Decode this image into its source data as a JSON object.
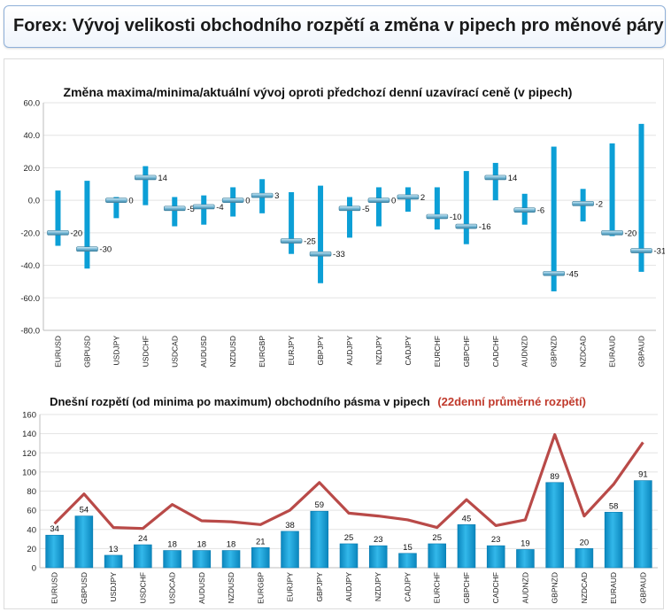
{
  "header": {
    "title": "Forex: Vývoj velikosti obchodního rozpětí a změna v pipech pro měnové páry"
  },
  "colors": {
    "bar": "#0c9fd6",
    "average_line": "#b94a48",
    "grid": "#e3e3e3"
  },
  "chart_data": [
    {
      "type": "bar",
      "title": "Změna maxima/minima/aktuální vývoj oproti předchozí denní uzavírací ceně (v pipech)",
      "ylim": [
        -80,
        60
      ],
      "yticks": [
        "60.0",
        "40.0",
        "20.0",
        "0.0",
        "-20.0",
        "-40.0",
        "-60.0",
        "-80.0"
      ],
      "categories": [
        "EURUSD",
        "GBPUSD",
        "USDJPY",
        "USDCHF",
        "USDCAD",
        "AUDUSD",
        "NZDUSD",
        "EURGBP",
        "EURJPY",
        "GBPJPY",
        "AUDJPY",
        "NZDJPY",
        "CADJPY",
        "EURCHF",
        "GBPCHF",
        "CADCHF",
        "AUDNZD",
        "GBPNZD",
        "NZDCAD",
        "EURAUD",
        "GBPAUD"
      ],
      "series": [
        {
          "values_high": [
            6,
            12,
            2,
            21,
            2,
            3,
            8,
            13,
            5,
            9,
            2,
            8,
            8,
            8,
            18,
            23,
            4,
            33,
            7,
            35,
            47
          ]
        },
        {
          "values_low": [
            -28,
            -42,
            -11,
            -3,
            -16,
            -15,
            -10,
            -8,
            -33,
            -51,
            -23,
            -16,
            -7,
            -18,
            -27,
            0,
            -15,
            -56,
            -13,
            -22,
            -44
          ]
        },
        {
          "values_current": [
            -20,
            -30,
            0,
            14,
            -5,
            -4,
            0,
            3,
            -25,
            -33,
            -5,
            0,
            2,
            -10,
            -16,
            14,
            -6,
            -45,
            -2,
            -20,
            -31
          ]
        }
      ],
      "data_labels": [
        "-20",
        "-30",
        "0",
        "14",
        "-5",
        "-4",
        "0",
        "3",
        "-25",
        "-33",
        "-5",
        "0",
        "2",
        "-10",
        "-16",
        "14",
        "-6",
        "-45",
        "-2",
        "-20",
        "-31"
      ]
    },
    {
      "type": "bar",
      "title": "Dnešní rozpětí (od minima po maximum) obchodního pásma v pipech",
      "title_highlight": "(22denní průměrné rozpětí)",
      "ylim": [
        0,
        160
      ],
      "yticks": [
        "160",
        "140",
        "120",
        "100",
        "80",
        "60",
        "40",
        "20",
        "0"
      ],
      "categories": [
        "EURUSD",
        "GBPUSD",
        "USDJPY",
        "USDCHF",
        "USDCAD",
        "AUDUSD",
        "NZDUSD",
        "EURGBP",
        "EURJPY",
        "GBPJPY",
        "AUDJPY",
        "NZDJPY",
        "CADJPY",
        "EURCHF",
        "GBPCHF",
        "CADCHF",
        "AUDNZD",
        "GBPNZD",
        "NZDCAD",
        "EURAUD",
        "GBPAUD"
      ],
      "series": [
        {
          "values": [
            34,
            54,
            13,
            24,
            18,
            18,
            18,
            21,
            38,
            59,
            25,
            23,
            15,
            25,
            45,
            23,
            19,
            89,
            20,
            58,
            91
          ]
        },
        {
          "values": [
            46,
            77,
            42,
            41,
            66,
            49,
            48,
            45,
            60,
            89,
            57,
            54,
            50,
            42,
            71,
            44,
            50,
            139,
            54,
            87,
            131
          ]
        }
      ],
      "data_labels": [
        "34",
        "54",
        "13",
        "24",
        "18",
        "18",
        "18",
        "21",
        "38",
        "59",
        "25",
        "23",
        "15",
        "25",
        "45",
        "23",
        "19",
        "89",
        "20",
        "58",
        "91"
      ]
    }
  ]
}
